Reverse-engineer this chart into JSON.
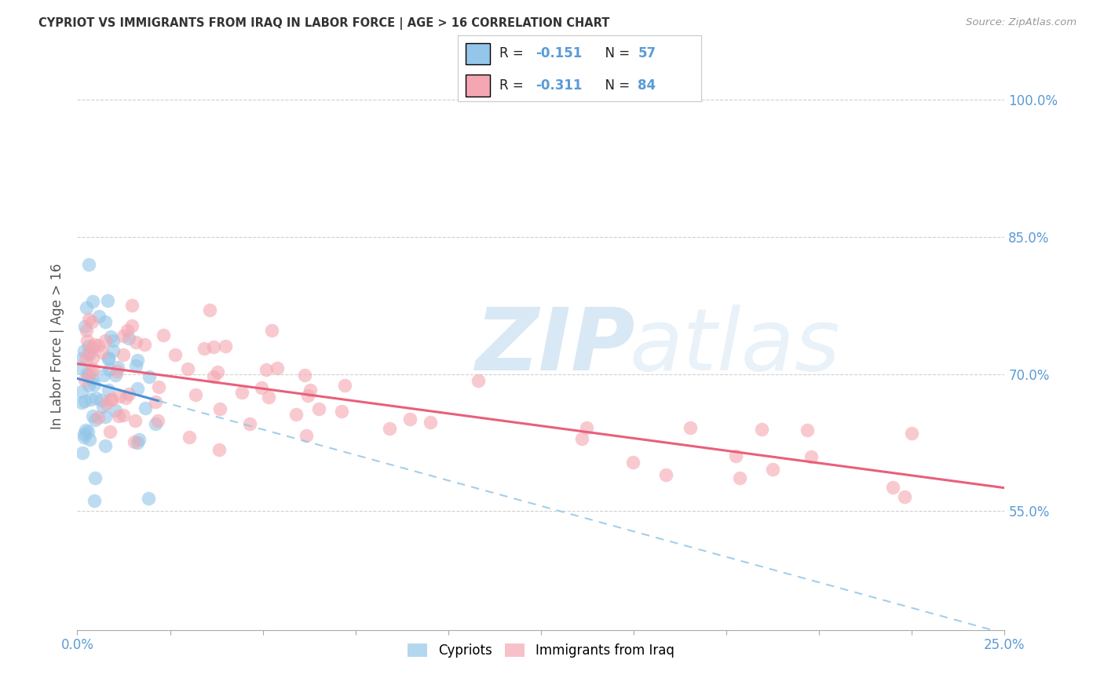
{
  "title": "CYPRIOT VS IMMIGRANTS FROM IRAQ IN LABOR FORCE | AGE > 16 CORRELATION CHART",
  "source": "Source: ZipAtlas.com",
  "ylabel": "In Labor Force | Age > 16",
  "y_ticks": [
    0.55,
    0.7,
    0.85,
    1.0
  ],
  "y_tick_labels": [
    "55.0%",
    "70.0%",
    "85.0%",
    "100.0%"
  ],
  "x_range": [
    0.0,
    0.25
  ],
  "y_range": [
    0.42,
    1.04
  ],
  "cypriot_color": "#93c6e8",
  "iraq_color": "#f4a7b2",
  "cypriot_line_color": "#4a90d9",
  "iraq_line_color": "#e8607a",
  "cypriot_R": -0.151,
  "cypriot_N": 57,
  "iraq_R": -0.311,
  "iraq_N": 84,
  "watermark_zip": "ZIP",
  "watermark_atlas": "atlas",
  "background_color": "#ffffff",
  "grid_color": "#d0d0d0",
  "title_color": "#333333",
  "tick_label_color": "#5b9bd5",
  "legend_text_dark": "#222222",
  "legend_text_blue": "#5b9bd5"
}
